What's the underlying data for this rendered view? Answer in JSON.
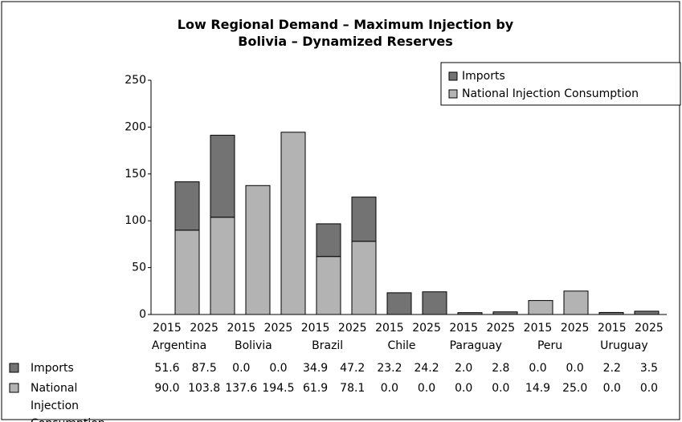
{
  "chart_data": {
    "type": "stacked_bar",
    "title": "Low Regional Demand – Maximum Injection by Bolivia – Dynamized Reserves",
    "categories": [
      "2015",
      "2025",
      "2015",
      "2025",
      "2015",
      "2025",
      "2015",
      "2025",
      "2015",
      "2025",
      "2015",
      "2025",
      "2015",
      "2025"
    ],
    "groups": [
      "Argentina",
      "Bolivia",
      "Brazil",
      "Chile",
      "Paraguay",
      "Peru",
      "Uruguay"
    ],
    "series": [
      {
        "name": "National Injection Consumption",
        "color": "#b3b3b3",
        "values": [
          90.0,
          103.8,
          137.6,
          194.5,
          61.9,
          78.1,
          0.0,
          0.0,
          0.0,
          0.0,
          14.9,
          25.0,
          0.0,
          0.0
        ],
        "value_labels": [
          "90.0",
          "103.8",
          "137.6",
          "194.5",
          "61.9",
          "78.1",
          "0.0",
          "0.0",
          "0.0",
          "0.0",
          "14.9",
          "25.0",
          "0.0",
          "0.0"
        ]
      },
      {
        "name": "Imports",
        "color": "#737373",
        "values": [
          51.6,
          87.5,
          0.0,
          0.0,
          34.9,
          47.2,
          23.2,
          24.2,
          2.0,
          2.8,
          0.0,
          0.0,
          2.2,
          3.5
        ],
        "value_labels": [
          "51.6",
          "87.5",
          "0.0",
          "0.0",
          "34.9",
          "47.2",
          "23.2",
          "24.2",
          "2.0",
          "2.8",
          "0.0",
          "0.0",
          "2.2",
          "3.5"
        ]
      }
    ],
    "ylim": [
      0,
      250
    ],
    "yticks": [
      0,
      50,
      100,
      150,
      200,
      250
    ],
    "grid": false,
    "legend": "upper right"
  }
}
